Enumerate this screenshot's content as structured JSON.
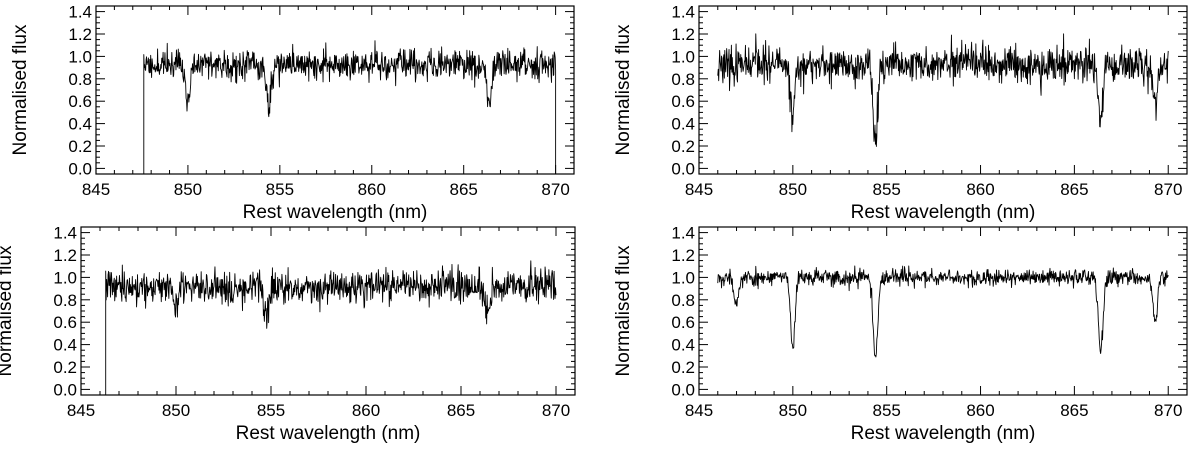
{
  "chart_data": [
    {
      "type": "line",
      "panel": "top-left",
      "xlabel": "Rest wavelength (nm)",
      "ylabel": "Normalised flux",
      "xlim": [
        845,
        871
      ],
      "ylim": [
        -0.05,
        1.45
      ],
      "xticks": [
        845,
        850,
        855,
        860,
        865,
        870
      ],
      "xtick_labels": [
        "845",
        "850",
        "855",
        "860",
        "865",
        "870"
      ],
      "yticks": [
        0.0,
        0.2,
        0.4,
        0.6,
        0.8,
        1.0,
        1.2,
        1.4
      ],
      "ytick_labels": [
        "0.0",
        "0.2",
        "0.4",
        "0.6",
        "0.8",
        "1.0",
        "1.2",
        "1.4"
      ],
      "grid": false,
      "data_range": [
        847.6,
        870.0
      ],
      "edge_drop": {
        "start": true,
        "end": true
      },
      "continuum": 0.93,
      "noise": 0.09,
      "seed": 11,
      "features": [
        {
          "x": 850.0,
          "min": 0.57
        },
        {
          "x": 854.4,
          "min": 0.53
        },
        {
          "x": 866.4,
          "min": 0.55
        }
      ]
    },
    {
      "type": "line",
      "panel": "top-right",
      "xlabel": "Rest wavelength (nm)",
      "ylabel": "Normalised flux",
      "xlim": [
        845,
        871
      ],
      "ylim": [
        -0.05,
        1.45
      ],
      "xticks": [
        845,
        850,
        855,
        860,
        865,
        870
      ],
      "xtick_labels": [
        "845",
        "850",
        "855",
        "860",
        "865",
        "870"
      ],
      "yticks": [
        0.0,
        0.2,
        0.4,
        0.6,
        0.8,
        1.0,
        1.2,
        1.4
      ],
      "ytick_labels": [
        "0.0",
        "0.2",
        "0.4",
        "0.6",
        "0.8",
        "1.0",
        "1.2",
        "1.4"
      ],
      "grid": false,
      "data_range": [
        846.0,
        870.0
      ],
      "edge_drop": {
        "start": false,
        "end": false
      },
      "continuum": 0.92,
      "noise": 0.11,
      "seed": 23,
      "features": [
        {
          "x": 850.0,
          "min": 0.5
        },
        {
          "x": 854.4,
          "min": 0.25
        },
        {
          "x": 866.4,
          "min": 0.38
        },
        {
          "x": 869.3,
          "min": 0.55
        }
      ]
    },
    {
      "type": "line",
      "panel": "bottom-left",
      "xlabel": "Rest wavelength (nm)",
      "ylabel": "Normalised flux",
      "xlim": [
        845,
        871
      ],
      "ylim": [
        -0.05,
        1.45
      ],
      "xticks": [
        845,
        850,
        855,
        860,
        865,
        870
      ],
      "xtick_labels": [
        "845",
        "850",
        "855",
        "860",
        "865",
        "870"
      ],
      "yticks": [
        0.0,
        0.2,
        0.4,
        0.6,
        0.8,
        1.0,
        1.2,
        1.4
      ],
      "ytick_labels": [
        "0.0",
        "0.2",
        "0.4",
        "0.6",
        "0.8",
        "1.0",
        "1.2",
        "1.4"
      ],
      "grid": false,
      "data_range": [
        846.3,
        870.0
      ],
      "edge_drop": {
        "start": true,
        "end": false
      },
      "continuum": 0.92,
      "noise": 0.1,
      "seed": 37,
      "features": [
        {
          "x": 854.7,
          "min": 0.65
        },
        {
          "x": 850.0,
          "min": 0.7
        },
        {
          "x": 866.4,
          "min": 0.65
        }
      ]
    },
    {
      "type": "line",
      "panel": "bottom-right",
      "xlabel": "Rest wavelength (nm)",
      "ylabel": "Normalised flux",
      "xlim": [
        845,
        871
      ],
      "ylim": [
        -0.05,
        1.45
      ],
      "xticks": [
        845,
        850,
        855,
        860,
        865,
        870
      ],
      "xtick_labels": [
        "845",
        "850",
        "855",
        "860",
        "865",
        "870"
      ],
      "yticks": [
        0.0,
        0.2,
        0.4,
        0.6,
        0.8,
        1.0,
        1.2,
        1.4
      ],
      "ytick_labels": [
        "0.0",
        "0.2",
        "0.4",
        "0.6",
        "0.8",
        "1.0",
        "1.2",
        "1.4"
      ],
      "grid": false,
      "data_range": [
        846.0,
        870.0
      ],
      "edge_drop": {
        "start": false,
        "end": false
      },
      "continuum": 1.0,
      "noise": 0.05,
      "seed": 53,
      "features": [
        {
          "x": 850.0,
          "min": 0.36
        },
        {
          "x": 854.4,
          "min": 0.27
        },
        {
          "x": 866.4,
          "min": 0.33
        },
        {
          "x": 869.3,
          "min": 0.58
        },
        {
          "x": 847.0,
          "min": 0.75
        }
      ]
    }
  ]
}
